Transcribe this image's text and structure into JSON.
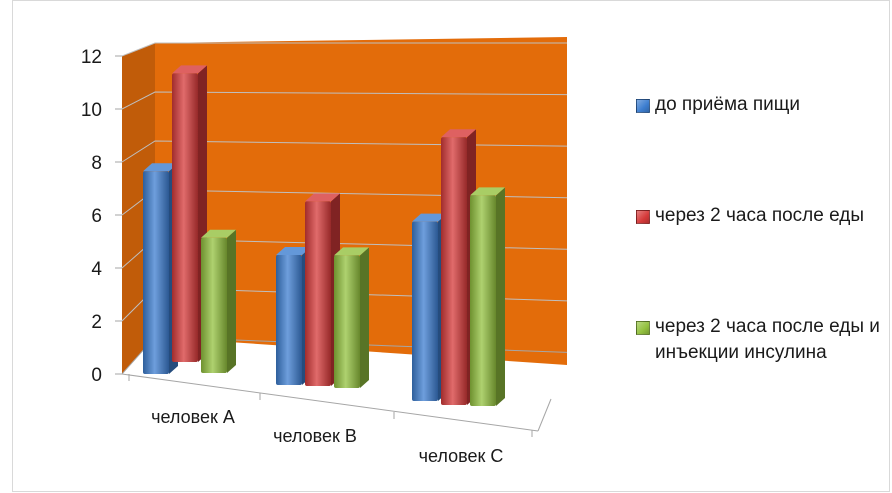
{
  "chart_data": {
    "type": "bar",
    "categories": [
      "человек А",
      "человек В",
      "человек С"
    ],
    "series": [
      {
        "name": "до приёма пищи",
        "values": [
          7.8,
          5.0,
          6.9
        ],
        "color": "#3d7ed0"
      },
      {
        "name": "через 2 часа после еды",
        "values": [
          11.1,
          7.1,
          10.3
        ],
        "color": "#d63a3a"
      },
      {
        "name": "через 2 часа после еды и инъекции инсулина",
        "values": [
          5.2,
          5.1,
          8.1
        ],
        "color": "#93c13f"
      }
    ],
    "y_ticks": [
      "0",
      "2",
      "4",
      "6",
      "8",
      "10",
      "12"
    ],
    "ylim": [
      0,
      12
    ],
    "grid": true,
    "wall_color": "#e36c0a",
    "legend_position": "right"
  }
}
